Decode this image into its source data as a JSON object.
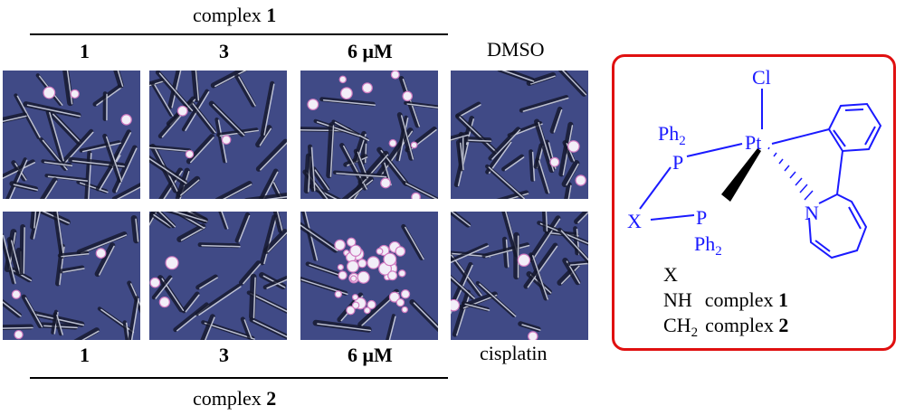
{
  "top_header": {
    "title_prefix": "complex ",
    "title_number": "1",
    "concentrations": [
      "1",
      "3",
      "6 μM"
    ],
    "control_label": "DMSO"
  },
  "bottom_header": {
    "title_prefix": "complex ",
    "title_number": "2",
    "concentrations": [
      "1",
      "3",
      "6 μM"
    ],
    "control_label": "cisplatin"
  },
  "micrographs": {
    "row1": [
      "complex 1 at 1 μM",
      "complex 1 at 3 μM",
      "complex 1 at 6 μM",
      "DMSO control"
    ],
    "row2": [
      "complex 2 at 1 μM",
      "complex 2 at 3 μM",
      "complex 2 at 6 μM",
      "cisplatin"
    ]
  },
  "structure": {
    "atom_cl": "Cl",
    "atom_pt": "Pt",
    "atom_p_upper": "P",
    "atom_p_lower": "P",
    "atom_x": "X",
    "atom_n": "N",
    "ph2": "Ph",
    "ph2_sub": "2",
    "legend_header": "X",
    "legend_rows": [
      {
        "group": "NH",
        "group_sub": "",
        "label": "complex ",
        "number": "1"
      },
      {
        "group": "CH",
        "group_sub": "2",
        "label": "complex ",
        "number": "2"
      }
    ]
  },
  "colors": {
    "structure_blue": "#1a1aff",
    "frame_red": "#e01010",
    "micro_background": "#404a86",
    "cell_light": "#d8dcec",
    "cell_dark": "#15182c"
  }
}
